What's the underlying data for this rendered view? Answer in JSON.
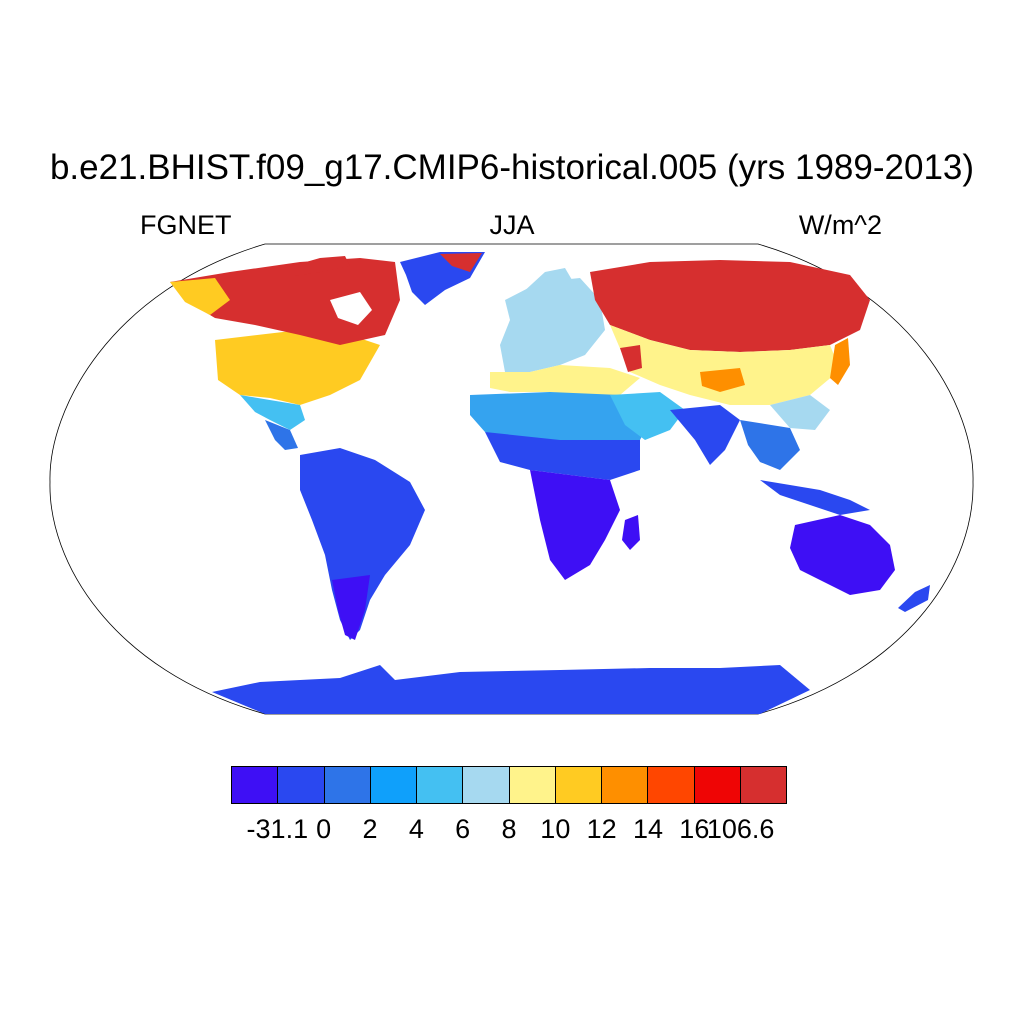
{
  "title": "b.e21.BHIST.f09_g17.CMIP6-historical.005 (yrs 1989-2013)",
  "left_label": "FGNET",
  "center_label": "JJA",
  "right_label": "W/m^2",
  "map": {
    "projection": "Robinson",
    "regions": [
      {
        "name": "north-america-north",
        "color": "#d62f2f"
      },
      {
        "name": "north-america-south",
        "color": "#ffcb22"
      },
      {
        "name": "greenland",
        "color": "#2a48f0"
      },
      {
        "name": "south-america",
        "color": "#2a48f0"
      },
      {
        "name": "europe",
        "color": "#a6d9f0"
      },
      {
        "name": "north-africa",
        "color": "#35a3ef"
      },
      {
        "name": "central-africa",
        "color": "#3e0ff5"
      },
      {
        "name": "siberia",
        "color": "#d62f2f"
      },
      {
        "name": "central-asia",
        "color": "#fff38b"
      },
      {
        "name": "south-asia",
        "color": "#2a48f0"
      },
      {
        "name": "australia",
        "color": "#3e0ff5"
      },
      {
        "name": "antarctica",
        "color": "#2a48f0"
      }
    ]
  },
  "colorbar": {
    "colors": [
      "#3e0ff5",
      "#2a48f0",
      "#2e74e8",
      "#0fa0fb",
      "#44c0f2",
      "#a6d9f0",
      "#fff38b",
      "#ffcb22",
      "#fe8f00",
      "#ff4600",
      "#ef0505",
      "#d62f2f"
    ],
    "labels": [
      "-31.1",
      "0",
      "2",
      "4",
      "6",
      "8",
      "10",
      "12",
      "14",
      "16",
      "106.6"
    ]
  }
}
